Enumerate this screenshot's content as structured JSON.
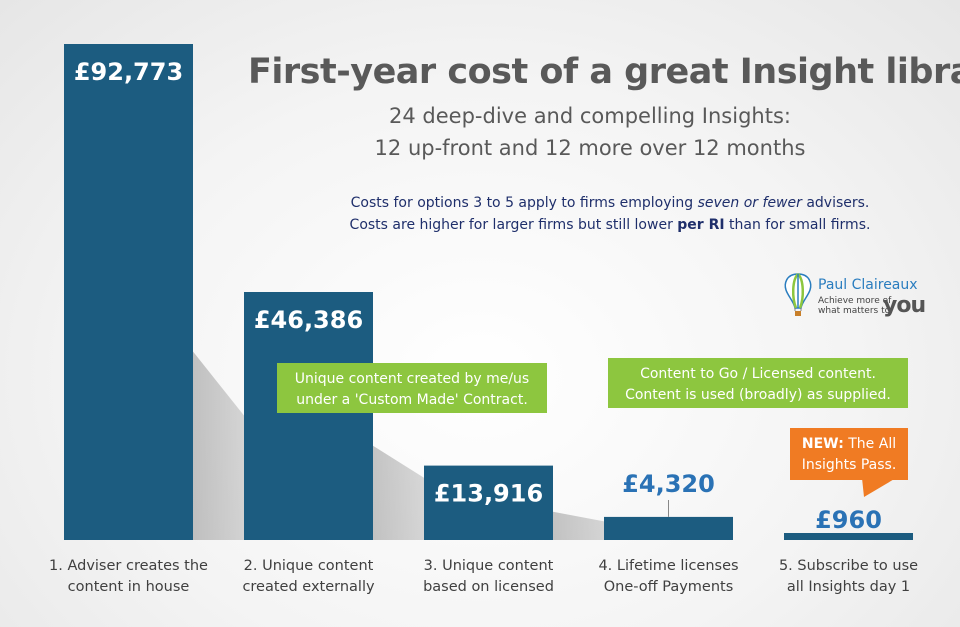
{
  "title": "First-year cost of a great Insight library",
  "subtitle": {
    "line1": "24 deep-dive and compelling Insights:",
    "line2": "12 up-front and 12 more over 12 months"
  },
  "note": {
    "line1_pre": "Costs for options 3 to 5 apply to firms employing ",
    "line1_em": "seven or fewer",
    "line1_post": " advisers.",
    "line2_pre": "Costs are higher for larger firms but still lower ",
    "line2_strong": "per RI",
    "line2_post": " than for small firms."
  },
  "logo": {
    "name": "Paul Claireaux",
    "tag1": "Achieve more of",
    "tag2": "what matters to",
    "you": "you"
  },
  "callouts": {
    "custom": [
      "Unique content created by me/us",
      "under a 'Custom Made' Contract."
    ],
    "licensed": [
      "Content to Go / Licensed content.",
      "Content is used (broadly) as supplied."
    ],
    "new_strong": "NEW:",
    "new_rest_1": " The All",
    "new_rest_2": "Insights Pass."
  },
  "colors": {
    "bar": "#1c5c80",
    "bar_top": "#1f6a92",
    "label_white": "#ffffff",
    "label_blue": "#2a72b5",
    "green": "#8dc63f",
    "orange": "#f07b23",
    "category_text": "#404040"
  },
  "chart_data": {
    "type": "bar",
    "categories": [
      [
        "1. Adviser creates the",
        "content in house"
      ],
      [
        "2. Unique content",
        "created externally"
      ],
      [
        "3. Unique content",
        "based on licensed"
      ],
      [
        "4. Lifetime licenses",
        "One-off Payments"
      ],
      [
        "5. Subscribe to use",
        "all Insights day 1"
      ]
    ],
    "values": [
      92773,
      46386,
      13916,
      4320,
      960
    ],
    "value_labels": [
      "£92,773",
      "£46,386",
      "£13,916",
      "£4,320",
      "£960"
    ],
    "label_inside": [
      true,
      true,
      true,
      false,
      false
    ],
    "ylim": [
      0,
      92773
    ],
    "grid": false,
    "legend": "none"
  }
}
